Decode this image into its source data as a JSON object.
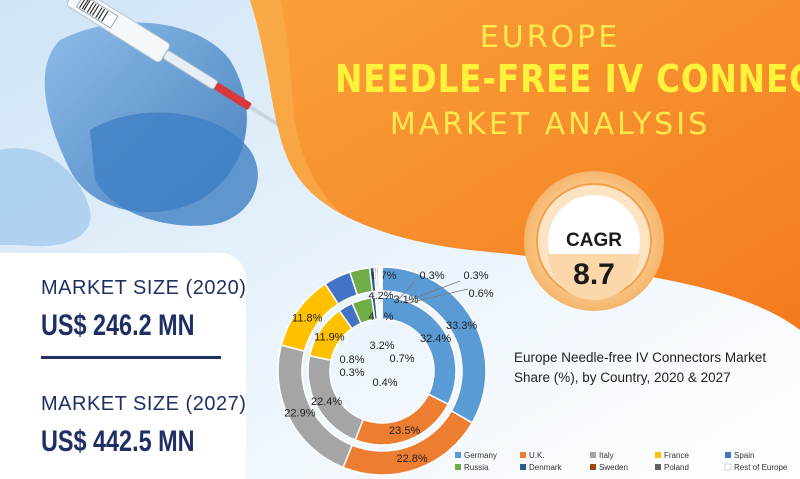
{
  "title": {
    "line1": "EUROPE",
    "line2": "NEEDLE-FREE IV CONNECTORS",
    "line3": "MARKET ANALYSIS"
  },
  "cagr": {
    "label": "CAGR",
    "value": "8.7"
  },
  "market_size": {
    "label_2020": "MARKET SIZE (2020)",
    "value_2020": "US$ 246.2 MN",
    "label_2027": "MARKET SIZE (2027)",
    "value_2027": "US$ 442.5 MN"
  },
  "caption": "Europe Needle-free IV Connectors Market Share (%), by Country, 2020 & 2027",
  "colors": {
    "orange": "#f7931e",
    "title_yellow": "#fff23a",
    "navy": "#1f2f63"
  },
  "chart_data": {
    "type": "donut",
    "title": "",
    "legend_position": "bottom",
    "categories": [
      "Germany",
      "U.K.",
      "Italy",
      "France",
      "Spain",
      "Russia",
      "Denmark",
      "Sweden",
      "Poland",
      "Rest of Europe"
    ],
    "colors": [
      "#5b9bd5",
      "#ed7d31",
      "#a5a5a5",
      "#ffc000",
      "#4472c4",
      "#70ad47",
      "#255e91",
      "#9e480e",
      "#636363",
      "#ffffff"
    ],
    "series": [
      {
        "values": [
          32.4,
          23.5,
          22.4,
          11.9,
          3.2,
          4.4,
          0.8,
          0.3,
          0.4,
          0.7
        ],
        "labels": [
          "32.4%",
          "23.5%",
          "22.4%",
          "11.9%",
          "3.2%",
          "4.4%",
          "0.8%",
          "0.3%",
          "0.4%",
          "0.7%"
        ]
      },
      {
        "values": [
          33.3,
          22.8,
          22.9,
          11.8,
          4.2,
          3.1,
          0.7,
          0.3,
          0.3,
          0.6
        ],
        "labels": [
          "33.3%",
          "22.8%",
          "22.9%",
          "11.8%",
          "4.2%",
          "3.1%",
          "0.7%",
          "0.3%",
          "0.3%",
          "0.6%"
        ]
      }
    ]
  }
}
